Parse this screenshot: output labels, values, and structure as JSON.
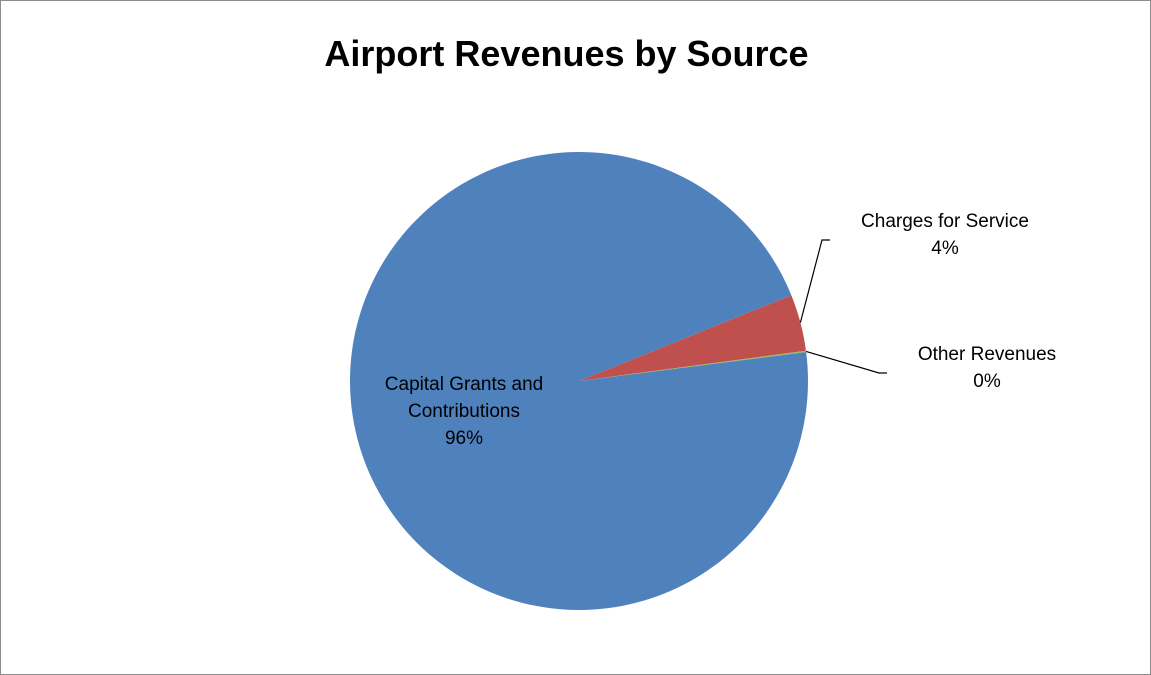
{
  "chart_data": {
    "type": "pie",
    "title": "Airport Revenues by Source",
    "start_angle_deg": 0,
    "slices": [
      {
        "name": "Charges for Service",
        "value": 4,
        "percent_label": "4%",
        "label_lines": [
          "Charges for Service"
        ],
        "color": "#C0504D"
      },
      {
        "name": "Other Revenues",
        "value": 0.1,
        "percent_label": "0%",
        "label_lines": [
          "Other Revenues"
        ],
        "color": "#9BBB59"
      },
      {
        "name": "Capital Grants and Contributions",
        "value": 95.9,
        "percent_label": "96%",
        "label_lines": [
          "Capital Grants and",
          "Contributions"
        ],
        "color": "#4F81BD"
      }
    ],
    "legend": "none",
    "data_labels": "category name and percentage"
  }
}
